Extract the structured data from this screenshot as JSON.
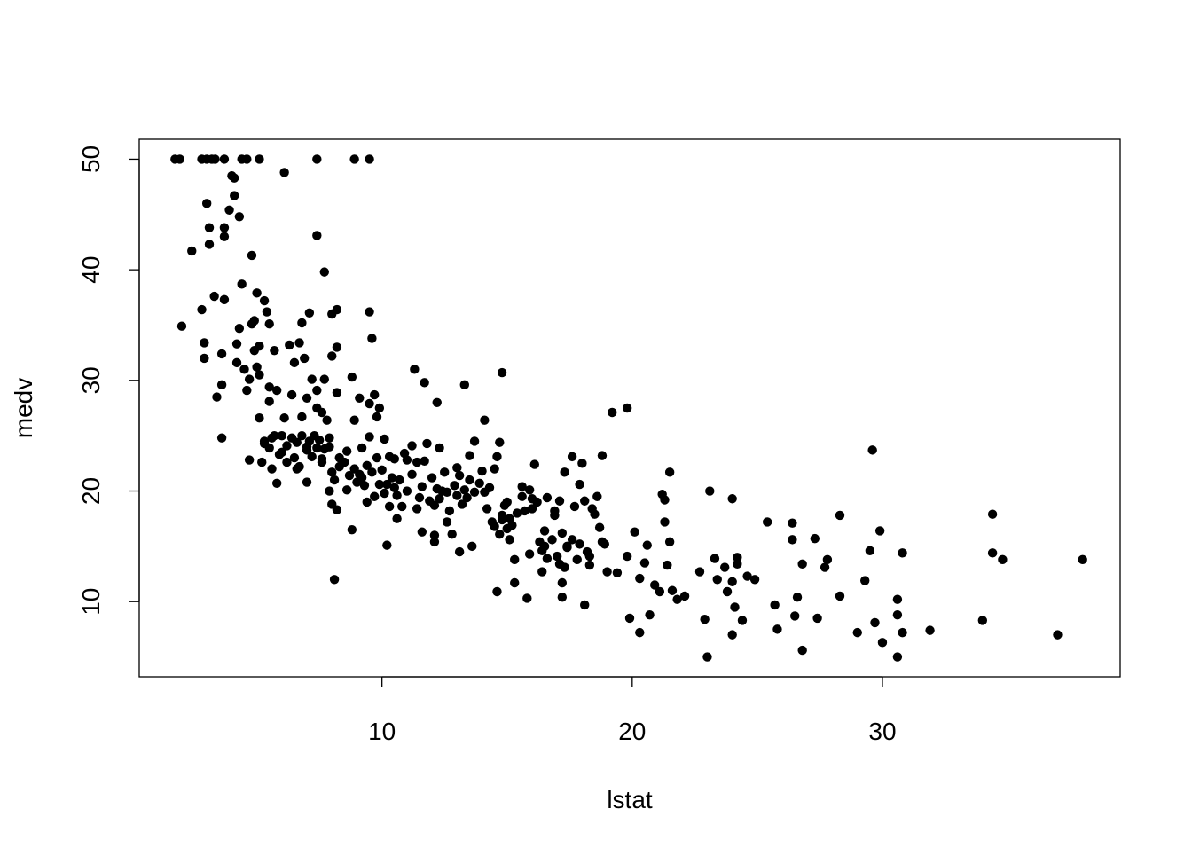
{
  "chart_data": {
    "type": "scatter",
    "title": "",
    "xlabel": "lstat",
    "ylabel": "medv",
    "xlim": [
      0.3,
      39.5
    ],
    "ylim": [
      3.2,
      51.8
    ],
    "xticks": [
      10,
      20,
      30
    ],
    "yticks": [
      10,
      20,
      30,
      40,
      50
    ],
    "grid": false,
    "legend": "none",
    "point_color": "#000000",
    "points": [
      [
        1.73,
        50
      ],
      [
        1.92,
        50
      ],
      [
        2.8,
        50
      ],
      [
        3.0,
        50
      ],
      [
        3.2,
        50
      ],
      [
        3.33,
        50
      ],
      [
        3.7,
        50
      ],
      [
        4.4,
        50
      ],
      [
        4.6,
        50
      ],
      [
        5.1,
        50
      ],
      [
        7.4,
        50
      ],
      [
        8.9,
        50
      ],
      [
        9.5,
        50
      ],
      [
        2.4,
        41.7
      ],
      [
        2.0,
        34.9
      ],
      [
        2.8,
        36.4
      ],
      [
        2.9,
        33.4
      ],
      [
        2.9,
        32.0
      ],
      [
        3.0,
        46.0
      ],
      [
        3.1,
        43.8
      ],
      [
        3.1,
        42.3
      ],
      [
        3.3,
        37.6
      ],
      [
        3.4,
        28.5
      ],
      [
        3.6,
        29.6
      ],
      [
        3.6,
        24.8
      ],
      [
        3.6,
        32.4
      ],
      [
        3.7,
        37.3
      ],
      [
        3.7,
        43.0
      ],
      [
        3.7,
        43.8
      ],
      [
        3.9,
        45.4
      ],
      [
        4.0,
        48.5
      ],
      [
        4.1,
        48.3
      ],
      [
        4.1,
        46.7
      ],
      [
        4.2,
        31.6
      ],
      [
        4.2,
        33.3
      ],
      [
        4.3,
        44.8
      ],
      [
        4.3,
        34.7
      ],
      [
        4.4,
        38.7
      ],
      [
        4.5,
        31.0
      ],
      [
        4.6,
        29.1
      ],
      [
        4.7,
        30.1
      ],
      [
        4.7,
        22.8
      ],
      [
        4.8,
        41.3
      ],
      [
        4.8,
        35.1
      ],
      [
        4.9,
        35.4
      ],
      [
        4.9,
        32.7
      ],
      [
        5.0,
        37.9
      ],
      [
        5.0,
        31.2
      ],
      [
        5.1,
        33.1
      ],
      [
        5.1,
        26.6
      ],
      [
        5.1,
        30.5
      ],
      [
        5.2,
        22.6
      ],
      [
        5.3,
        37.2
      ],
      [
        5.3,
        24.3
      ],
      [
        5.4,
        36.2
      ],
      [
        5.5,
        35.1
      ],
      [
        5.5,
        29.4
      ],
      [
        5.5,
        28.1
      ],
      [
        5.5,
        23.9
      ],
      [
        5.6,
        24.8
      ],
      [
        5.6,
        22.0
      ],
      [
        5.7,
        32.7
      ],
      [
        5.8,
        20.7
      ],
      [
        5.8,
        29.1
      ],
      [
        5.9,
        23.3
      ],
      [
        6.0,
        25.0
      ],
      [
        6.1,
        26.6
      ],
      [
        6.1,
        48.8
      ],
      [
        6.2,
        22.6
      ],
      [
        6.3,
        33.2
      ],
      [
        6.4,
        28.7
      ],
      [
        6.5,
        31.6
      ],
      [
        6.6,
        24.4
      ],
      [
        6.6,
        22.0
      ],
      [
        6.7,
        33.4
      ],
      [
        6.8,
        35.2
      ],
      [
        6.8,
        26.7
      ],
      [
        6.9,
        32.0
      ],
      [
        7.0,
        28.4
      ],
      [
        7.0,
        20.8
      ],
      [
        7.0,
        24.0
      ],
      [
        7.1,
        36.1
      ],
      [
        7.2,
        30.1
      ],
      [
        7.3,
        25.0
      ],
      [
        7.4,
        27.5
      ],
      [
        7.4,
        43.1
      ],
      [
        7.4,
        29.1
      ],
      [
        7.6,
        22.6
      ],
      [
        7.6,
        27.1
      ],
      [
        7.7,
        39.8
      ],
      [
        7.7,
        30.1
      ],
      [
        7.8,
        26.4
      ],
      [
        7.9,
        24.0
      ],
      [
        7.9,
        20.0
      ],
      [
        8.0,
        36.0
      ],
      [
        8.0,
        32.2
      ],
      [
        8.0,
        18.8
      ],
      [
        8.1,
        12.0
      ],
      [
        8.2,
        33.0
      ],
      [
        8.2,
        28.9
      ],
      [
        8.2,
        36.4
      ],
      [
        8.2,
        18.3
      ],
      [
        8.3,
        22.2
      ],
      [
        8.6,
        20.1
      ],
      [
        8.8,
        30.3
      ],
      [
        8.8,
        16.5
      ],
      [
        8.9,
        26.4
      ],
      [
        9.1,
        28.4
      ],
      [
        9.2,
        21.2
      ],
      [
        9.4,
        19.0
      ],
      [
        9.5,
        27.9
      ],
      [
        9.5,
        36.2
      ],
      [
        9.6,
        33.8
      ],
      [
        9.7,
        28.7
      ],
      [
        9.8,
        26.7
      ],
      [
        9.9,
        27.5
      ],
      [
        10.1,
        24.7
      ],
      [
        10.2,
        15.1
      ],
      [
        10.3,
        23.1
      ],
      [
        10.5,
        20.3
      ],
      [
        10.6,
        17.5
      ],
      [
        10.8,
        18.6
      ],
      [
        11.0,
        22.8
      ],
      [
        11.2,
        24.1
      ],
      [
        11.3,
        31.0
      ],
      [
        11.4,
        18.4
      ],
      [
        11.6,
        16.3
      ],
      [
        11.7,
        29.8
      ],
      [
        11.8,
        24.3
      ],
      [
        12.1,
        15.4
      ],
      [
        12.1,
        16.0
      ],
      [
        12.2,
        28.0
      ],
      [
        12.3,
        23.9
      ],
      [
        12.4,
        20.0
      ],
      [
        12.6,
        17.2
      ],
      [
        12.8,
        16.1
      ],
      [
        13.0,
        22.1
      ],
      [
        13.1,
        14.5
      ],
      [
        13.3,
        29.6
      ],
      [
        13.5,
        23.2
      ],
      [
        13.6,
        15.0
      ],
      [
        13.7,
        24.5
      ],
      [
        14.1,
        26.4
      ],
      [
        14.2,
        18.4
      ],
      [
        14.5,
        22.0
      ],
      [
        14.6,
        10.9
      ],
      [
        14.7,
        24.4
      ],
      [
        14.8,
        30.7
      ],
      [
        14.8,
        17.8
      ],
      [
        15.0,
        19.0
      ],
      [
        15.1,
        15.6
      ],
      [
        15.3,
        11.7
      ],
      [
        15.3,
        13.8
      ],
      [
        15.6,
        20.4
      ],
      [
        15.8,
        10.3
      ],
      [
        15.9,
        14.3
      ],
      [
        16.0,
        18.4
      ],
      [
        16.1,
        22.4
      ],
      [
        16.4,
        12.7
      ],
      [
        16.5,
        15.0
      ],
      [
        16.6,
        19.4
      ],
      [
        16.9,
        17.8
      ],
      [
        17.1,
        13.4
      ],
      [
        17.2,
        10.4
      ],
      [
        17.2,
        11.7
      ],
      [
        17.3,
        21.7
      ],
      [
        17.4,
        15.0
      ],
      [
        17.6,
        23.1
      ],
      [
        17.9,
        20.6
      ],
      [
        18.0,
        22.5
      ],
      [
        18.1,
        9.7
      ],
      [
        18.3,
        14.1
      ],
      [
        18.5,
        17.9
      ],
      [
        18.8,
        23.2
      ],
      [
        18.9,
        15.2
      ],
      [
        19.2,
        27.1
      ],
      [
        19.4,
        12.6
      ],
      [
        19.8,
        27.5
      ],
      [
        19.8,
        14.1
      ],
      [
        19.9,
        8.5
      ],
      [
        20.1,
        16.3
      ],
      [
        20.3,
        12.1
      ],
      [
        20.3,
        7.2
      ],
      [
        20.5,
        13.5
      ],
      [
        20.6,
        15.1
      ],
      [
        20.7,
        8.8
      ],
      [
        20.9,
        11.5
      ],
      [
        21.1,
        10.9
      ],
      [
        21.2,
        19.7
      ],
      [
        21.3,
        17.2
      ],
      [
        21.3,
        19.2
      ],
      [
        21.4,
        13.3
      ],
      [
        21.5,
        15.4
      ],
      [
        21.5,
        21.7
      ],
      [
        21.6,
        11.0
      ],
      [
        21.8,
        10.2
      ],
      [
        22.1,
        10.5
      ],
      [
        22.7,
        12.7
      ],
      [
        22.9,
        8.4
      ],
      [
        23.0,
        5.0
      ],
      [
        23.1,
        20.0
      ],
      [
        23.3,
        13.9
      ],
      [
        23.4,
        12.0
      ],
      [
        23.7,
        13.1
      ],
      [
        23.8,
        10.9
      ],
      [
        24.0,
        19.3
      ],
      [
        24.0,
        7.0
      ],
      [
        24.0,
        11.8
      ],
      [
        24.1,
        9.5
      ],
      [
        24.2,
        13.4
      ],
      [
        24.2,
        14.0
      ],
      [
        24.4,
        8.3
      ],
      [
        24.6,
        12.3
      ],
      [
        24.9,
        12.0
      ],
      [
        25.4,
        17.2
      ],
      [
        25.7,
        9.7
      ],
      [
        25.8,
        7.5
      ],
      [
        26.4,
        17.1
      ],
      [
        26.4,
        15.6
      ],
      [
        26.5,
        8.7
      ],
      [
        26.6,
        10.4
      ],
      [
        26.8,
        5.6
      ],
      [
        26.8,
        13.4
      ],
      [
        27.3,
        15.7
      ],
      [
        27.4,
        8.5
      ],
      [
        27.7,
        13.1
      ],
      [
        27.8,
        13.8
      ],
      [
        28.3,
        10.5
      ],
      [
        28.3,
        17.8
      ],
      [
        29.0,
        7.2
      ],
      [
        29.3,
        11.9
      ],
      [
        29.5,
        14.6
      ],
      [
        29.6,
        23.7
      ],
      [
        29.7,
        8.1
      ],
      [
        29.9,
        16.4
      ],
      [
        30.0,
        6.3
      ],
      [
        30.6,
        5.0
      ],
      [
        30.6,
        10.2
      ],
      [
        30.6,
        8.8
      ],
      [
        30.8,
        7.2
      ],
      [
        30.8,
        14.4
      ],
      [
        31.9,
        7.4
      ],
      [
        34.0,
        8.3
      ],
      [
        34.4,
        17.9
      ],
      [
        34.4,
        14.4
      ],
      [
        34.8,
        13.8
      ],
      [
        37.0,
        7.0
      ],
      [
        38.0,
        13.8
      ],
      [
        5.3,
        24.5
      ],
      [
        5.7,
        25.0
      ],
      [
        6.0,
        23.5
      ],
      [
        6.2,
        24.1
      ],
      [
        6.4,
        24.8
      ],
      [
        6.5,
        23.0
      ],
      [
        6.7,
        22.2
      ],
      [
        6.8,
        25.0
      ],
      [
        7.0,
        23.7
      ],
      [
        7.1,
        24.5
      ],
      [
        7.2,
        23.1
      ],
      [
        7.4,
        23.9
      ],
      [
        7.5,
        24.6
      ],
      [
        7.6,
        22.9
      ],
      [
        7.7,
        23.8
      ],
      [
        7.9,
        24.8
      ],
      [
        8.0,
        21.7
      ],
      [
        8.1,
        21.0
      ],
      [
        8.3,
        23.0
      ],
      [
        8.5,
        22.6
      ],
      [
        8.6,
        23.6
      ],
      [
        8.7,
        21.4
      ],
      [
        8.9,
        22.0
      ],
      [
        9.0,
        20.8
      ],
      [
        9.1,
        21.5
      ],
      [
        9.2,
        23.9
      ],
      [
        9.3,
        20.5
      ],
      [
        9.4,
        22.3
      ],
      [
        9.5,
        24.9
      ],
      [
        9.6,
        21.7
      ],
      [
        9.7,
        19.5
      ],
      [
        9.8,
        23.0
      ],
      [
        9.9,
        20.6
      ],
      [
        10.0,
        21.9
      ],
      [
        10.1,
        19.8
      ],
      [
        10.2,
        20.6
      ],
      [
        10.3,
        18.6
      ],
      [
        10.4,
        21.2
      ],
      [
        10.5,
        22.9
      ],
      [
        10.6,
        19.6
      ],
      [
        10.7,
        21.0
      ],
      [
        10.9,
        23.4
      ],
      [
        11.0,
        20.0
      ],
      [
        11.2,
        21.5
      ],
      [
        11.4,
        22.6
      ],
      [
        11.5,
        19.4
      ],
      [
        11.6,
        20.4
      ],
      [
        11.7,
        22.7
      ],
      [
        11.9,
        19.1
      ],
      [
        12.0,
        21.2
      ],
      [
        12.1,
        18.7
      ],
      [
        12.2,
        20.2
      ],
      [
        12.3,
        19.3
      ],
      [
        12.5,
        21.7
      ],
      [
        12.6,
        19.9
      ],
      [
        12.7,
        18.2
      ],
      [
        12.9,
        20.5
      ],
      [
        13.0,
        19.6
      ],
      [
        13.1,
        21.4
      ],
      [
        13.2,
        18.8
      ],
      [
        13.3,
        20.1
      ],
      [
        13.4,
        19.4
      ],
      [
        13.5,
        21.0
      ],
      [
        13.7,
        19.9
      ],
      [
        13.9,
        20.7
      ],
      [
        14.0,
        21.8
      ],
      [
        14.1,
        19.9
      ],
      [
        14.3,
        20.3
      ],
      [
        14.4,
        17.2
      ],
      [
        14.5,
        16.8
      ],
      [
        14.6,
        23.1
      ],
      [
        14.7,
        16.1
      ],
      [
        14.8,
        17.4
      ],
      [
        14.9,
        18.7
      ],
      [
        15.0,
        16.6
      ],
      [
        15.1,
        17.5
      ],
      [
        15.2,
        16.9
      ],
      [
        15.4,
        18.0
      ],
      [
        15.6,
        19.5
      ],
      [
        15.7,
        18.2
      ],
      [
        15.9,
        20.1
      ],
      [
        16.0,
        19.3
      ],
      [
        16.2,
        19.0
      ],
      [
        16.3,
        15.4
      ],
      [
        16.4,
        14.6
      ],
      [
        16.5,
        16.4
      ],
      [
        16.6,
        13.9
      ],
      [
        16.8,
        15.6
      ],
      [
        16.9,
        18.2
      ],
      [
        17.0,
        14.1
      ],
      [
        17.1,
        19.1
      ],
      [
        17.2,
        16.2
      ],
      [
        17.3,
        13.1
      ],
      [
        17.4,
        14.9
      ],
      [
        17.6,
        15.6
      ],
      [
        17.7,
        18.6
      ],
      [
        17.8,
        13.8
      ],
      [
        17.9,
        15.2
      ],
      [
        18.1,
        19.1
      ],
      [
        18.2,
        14.5
      ],
      [
        18.3,
        13.3
      ],
      [
        18.4,
        18.4
      ],
      [
        18.6,
        19.5
      ],
      [
        18.7,
        16.7
      ],
      [
        18.8,
        15.4
      ],
      [
        19.0,
        12.7
      ]
    ]
  }
}
